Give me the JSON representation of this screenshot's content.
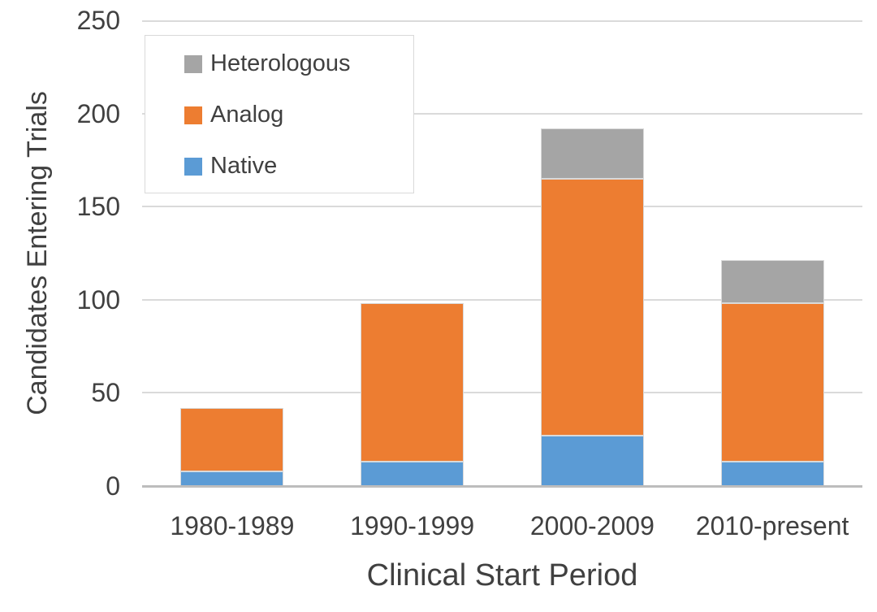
{
  "chart_data": {
    "type": "bar",
    "stacked": true,
    "xlabel": "Clinical Start Period",
    "ylabel": "Candidates Entering Trials",
    "categories": [
      "1980-1989",
      "1990-1999",
      "2000-2009",
      "2010-present"
    ],
    "series": [
      {
        "name": "Native",
        "color": "#5B9BD5",
        "values": [
          8,
          13,
          27,
          13
        ]
      },
      {
        "name": "Analog",
        "color": "#ED7D31",
        "values": [
          34,
          85,
          138,
          85
        ]
      },
      {
        "name": "Heterologous",
        "color": "#A5A5A5",
        "values": [
          0,
          0,
          27,
          23
        ]
      }
    ],
    "stack_totals": [
      42,
      98,
      192,
      121
    ],
    "ylim": [
      0,
      250
    ],
    "yticks": [
      0,
      50,
      100,
      150,
      200,
      250
    ],
    "grid": "horizontal-only",
    "legend": {
      "position": "inside-top-left",
      "order": [
        "Heterologous",
        "Analog",
        "Native"
      ]
    }
  },
  "colors": {
    "text": "#404040",
    "gridline": "#dadada",
    "axis_line": "#bdbdbd",
    "segment_border": "#d9d9d9",
    "legend_border": "#d9d9d9",
    "background": "#ffffff"
  }
}
